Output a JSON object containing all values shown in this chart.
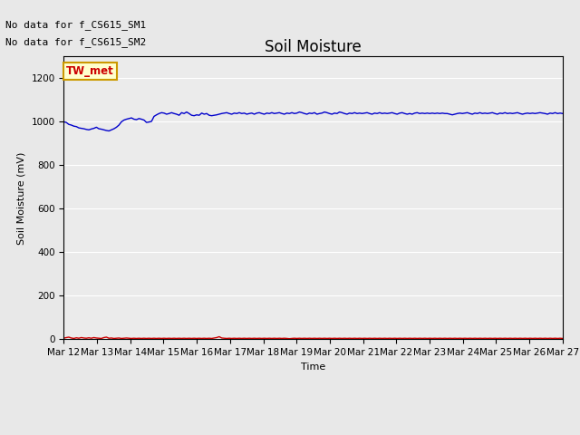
{
  "title": "Soil Moisture",
  "ylabel": "Soil Moisture (mV)",
  "xlabel": "Time",
  "text_no_data_1": "No data for f_CS615_SM1",
  "text_no_data_2": "No data for f_CS615_SM2",
  "legend_box_label": "TW_met",
  "legend_box_facecolor": "#ffffcc",
  "legend_box_edgecolor": "#cc9900",
  "ylim": [
    0,
    1300
  ],
  "yticks": [
    0,
    200,
    400,
    600,
    800,
    1000,
    1200
  ],
  "xtick_labels": [
    "Mar 12",
    "Mar 13",
    "Mar 14",
    "Mar 15",
    "Mar 16",
    "Mar 17",
    "Mar 18",
    "Mar 19",
    "Mar 20",
    "Mar 21",
    "Mar 22",
    "Mar 23",
    "Mar 24",
    "Mar 25",
    "Mar 26",
    "Mar 27"
  ],
  "background_color": "#e8e8e8",
  "axes_bg_color": "#ebebeb",
  "grid_color": "#ffffff",
  "sm1_color": "#cc0000",
  "sm2_color": "#0000cc",
  "sm2_values": [
    1000,
    997,
    988,
    985,
    980,
    978,
    972,
    970,
    968,
    965,
    963,
    967,
    970,
    975,
    968,
    966,
    963,
    960,
    958,
    963,
    968,
    975,
    985,
    1000,
    1008,
    1012,
    1015,
    1018,
    1012,
    1010,
    1015,
    1012,
    1008,
    997,
    999,
    1002,
    1025,
    1032,
    1038,
    1042,
    1040,
    1035,
    1038,
    1042,
    1038,
    1035,
    1030,
    1042,
    1038,
    1045,
    1038,
    1030,
    1028,
    1032,
    1030,
    1040,
    1035,
    1038,
    1030,
    1028,
    1030,
    1032,
    1035,
    1038,
    1040,
    1042,
    1038,
    1035,
    1040,
    1038,
    1042,
    1038,
    1040,
    1035,
    1038,
    1040,
    1035,
    1040,
    1042,
    1038,
    1035,
    1040,
    1038,
    1042,
    1038,
    1040,
    1042,
    1038,
    1035,
    1040,
    1038,
    1042,
    1038,
    1040,
    1045,
    1042,
    1038,
    1035,
    1040,
    1038,
    1042,
    1035,
    1038,
    1040,
    1045,
    1042,
    1038,
    1035,
    1040,
    1038,
    1045,
    1042,
    1038,
    1035,
    1040,
    1038,
    1042,
    1038,
    1040,
    1038,
    1040,
    1042,
    1038,
    1035,
    1040,
    1038,
    1042,
    1038,
    1040,
    1038,
    1040,
    1042,
    1038,
    1035,
    1040,
    1042,
    1038,
    1035,
    1038,
    1035,
    1040,
    1042,
    1038,
    1040,
    1038,
    1040,
    1038,
    1040,
    1038,
    1040,
    1038,
    1040,
    1038,
    1038,
    1035,
    1032,
    1035,
    1038,
    1040,
    1038,
    1040,
    1042,
    1038,
    1035,
    1040,
    1038,
    1042,
    1038,
    1040,
    1038,
    1040,
    1042,
    1038,
    1035,
    1040,
    1038,
    1042,
    1038,
    1040,
    1038,
    1040,
    1042,
    1038,
    1035,
    1038,
    1040,
    1038,
    1040,
    1038,
    1040,
    1042,
    1040,
    1038,
    1035,
    1040,
    1038,
    1042,
    1038,
    1040,
    1038
  ],
  "sm1_values": [
    5,
    8,
    10,
    6,
    4,
    7,
    5,
    8,
    6,
    5,
    7,
    5,
    8,
    6,
    5,
    4,
    8,
    10,
    5,
    6,
    4,
    5,
    6,
    4,
    5,
    6,
    5,
    4,
    5,
    4,
    5,
    4,
    5,
    4,
    5,
    4,
    5,
    4,
    5,
    4,
    5,
    4,
    5,
    4,
    5,
    4,
    5,
    4,
    5,
    4,
    5,
    4,
    5,
    4,
    5,
    4,
    5,
    4,
    5,
    4,
    6,
    8,
    12,
    6,
    5,
    4,
    5,
    4,
    5,
    4,
    5,
    4,
    5,
    4,
    5,
    4,
    5,
    4,
    5,
    4,
    5,
    4,
    5,
    4,
    5,
    4,
    5,
    4,
    5,
    4,
    3,
    4,
    5,
    4,
    5,
    4,
    5,
    4,
    5,
    4,
    5,
    4,
    5,
    4,
    5,
    4,
    5,
    4,
    5,
    4,
    5,
    4,
    5,
    4,
    5,
    4,
    5,
    4,
    5,
    4,
    5,
    4,
    5,
    4,
    5,
    4,
    5,
    4,
    5,
    4,
    5,
    4,
    5,
    4,
    5,
    4,
    5,
    4,
    5,
    4,
    5,
    4,
    5,
    4,
    5,
    4,
    5,
    4,
    5,
    4,
    5,
    4,
    5,
    4,
    5,
    4,
    5,
    4,
    5,
    4,
    5,
    4,
    5,
    4,
    5,
    4,
    5,
    4,
    5,
    4,
    5,
    4,
    5,
    4,
    5,
    4,
    5,
    4,
    5,
    4,
    5,
    4,
    5,
    4,
    5,
    4,
    5,
    4,
    5,
    4,
    5,
    4,
    5,
    4,
    5,
    4,
    5,
    4,
    5,
    4
  ],
  "title_fontsize": 12,
  "tick_fontsize": 7.5,
  "label_fontsize": 8,
  "no_data_fontsize": 8
}
